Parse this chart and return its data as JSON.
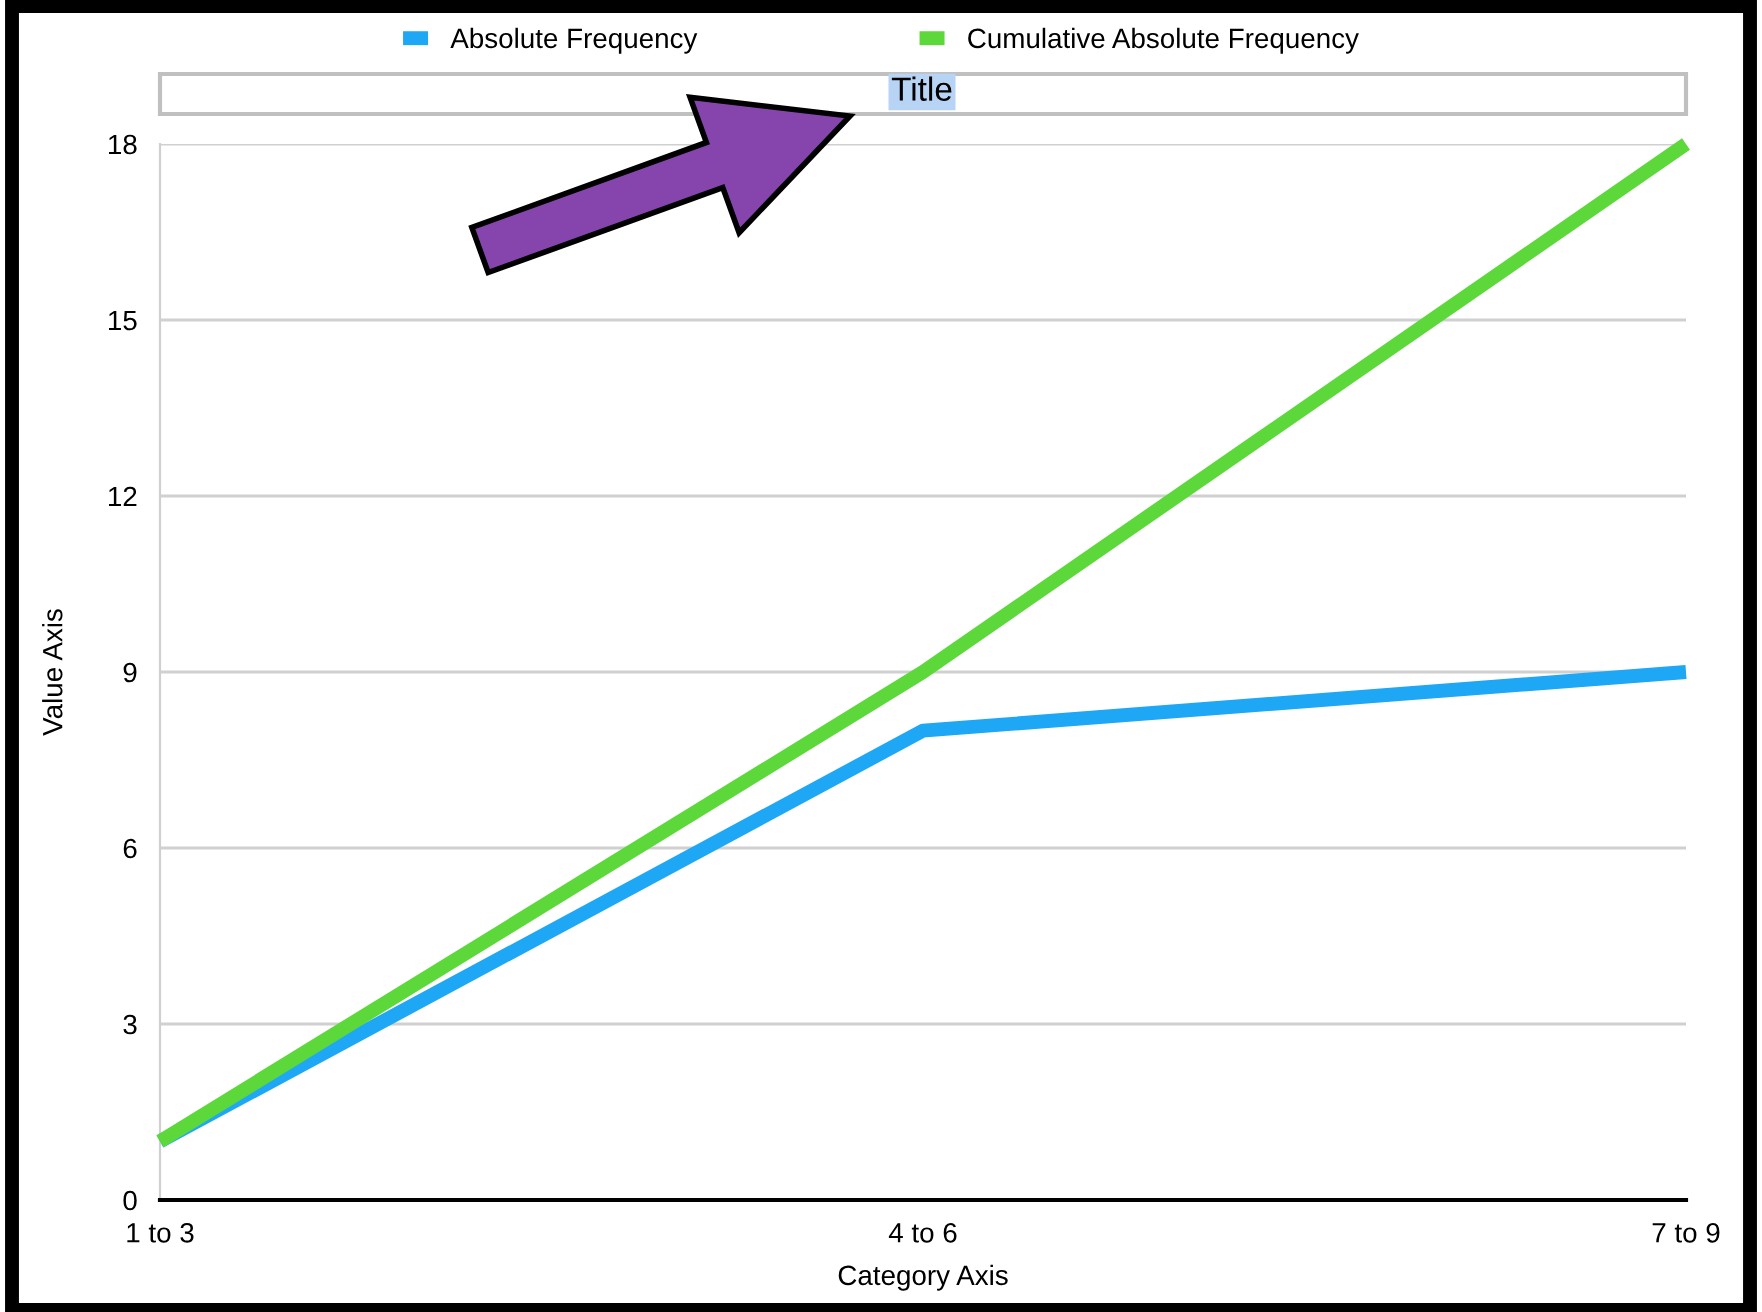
{
  "chart_data": {
    "type": "line",
    "title": "Title",
    "xlabel": "Category Axis",
    "ylabel": "Value Axis",
    "categories": [
      "1 to 3",
      "4 to 6",
      "7 to 9"
    ],
    "series": [
      {
        "name": "Absolute Frequency",
        "color": "#1ea7f5",
        "values": [
          1,
          8,
          9
        ]
      },
      {
        "name": "Cumulative Absolute Frequency",
        "color": "#5cd83a",
        "values": [
          1,
          9,
          18
        ]
      }
    ],
    "ylim": [
      0,
      18
    ],
    "yticks": [
      0,
      3,
      6,
      9,
      12,
      15,
      18
    ],
    "grid": "y",
    "legend": "top",
    "marker": "none",
    "line_style": "solid"
  }
}
